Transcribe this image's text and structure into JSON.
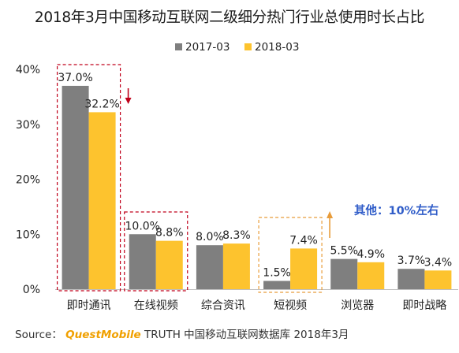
{
  "chart_data": {
    "type": "bar",
    "title": "2018年3月中国移动互联网二级细分热门行业总使用时长占比",
    "categories": [
      "即时通讯",
      "在线视频",
      "综合资讯",
      "短视频",
      "浏览器",
      "即时战略"
    ],
    "series": [
      {
        "name": "2017-03",
        "color": "#7f7f7f",
        "values": [
          37.0,
          10.0,
          8.0,
          1.5,
          5.5,
          3.7
        ]
      },
      {
        "name": "2018-03",
        "color": "#fdc32e",
        "values": [
          32.2,
          8.8,
          8.3,
          7.4,
          4.9,
          3.4
        ]
      }
    ],
    "value_labels": [
      [
        "37.0%",
        "10.0%",
        "8.0%",
        "1.5%",
        "5.5%",
        "3.7%"
      ],
      [
        "32.2%",
        "8.8%",
        "8.3%",
        "7.4%",
        "4.9%",
        "3.4%"
      ]
    ],
    "y_ticks": [
      0,
      10,
      20,
      30,
      40
    ],
    "y_tick_labels": [
      "0%",
      "10%",
      "20%",
      "30%",
      "40%"
    ],
    "ylim": [
      0,
      40
    ],
    "legend_position": "top-center",
    "grid": false,
    "annotations": {
      "other_text": "其他：10%左右",
      "other_color": "#2f5cc8",
      "down_arrow_color": "#c0001a",
      "up_arrow_color": "#e89c3a",
      "red_box_color": "#c0001a",
      "orange_box_color": "#e89c3a"
    }
  },
  "source": {
    "prefix": "Source：",
    "brand": "QuestMobile",
    "rest": " TRUTH 中国移动互联网数据库 2018年3月"
  }
}
